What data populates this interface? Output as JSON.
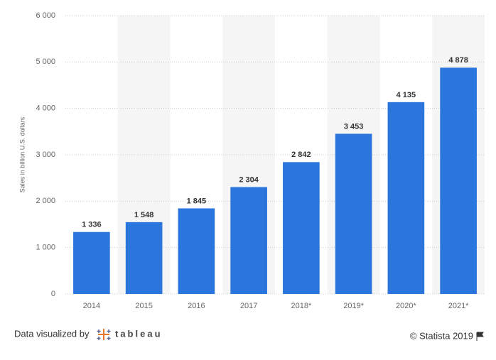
{
  "chart_data": {
    "type": "bar",
    "y_label": "Sales in billion U.S. dollars",
    "categories": [
      "2014",
      "2015",
      "2016",
      "2017",
      "2018*",
      "2019*",
      "2020*",
      "2021*"
    ],
    "values": [
      1336,
      1548,
      1845,
      2304,
      2842,
      3453,
      4135,
      4878
    ],
    "value_labels": [
      "1 336",
      "1 548",
      "1 845",
      "2 304",
      "2 842",
      "3 453",
      "4 135",
      "4 878"
    ],
    "color": "#2a76dd",
    "ylim": [
      0,
      6000
    ],
    "yticks": [
      0,
      {
        "value": 1000,
        "label": "1 000"
      },
      {
        "value": 2000,
        "label": "2 000"
      },
      {
        "value": 3000,
        "label": "3 000"
      },
      {
        "value": 4000,
        "label": "4 000"
      },
      {
        "value": 5000,
        "label": "5 000"
      },
      {
        "value": 6000,
        "label": "6 000"
      }
    ],
    "grid": true
  },
  "footer": {
    "credit": "Data visualized by",
    "brand": "tableau",
    "source": "© Statista 2019"
  }
}
